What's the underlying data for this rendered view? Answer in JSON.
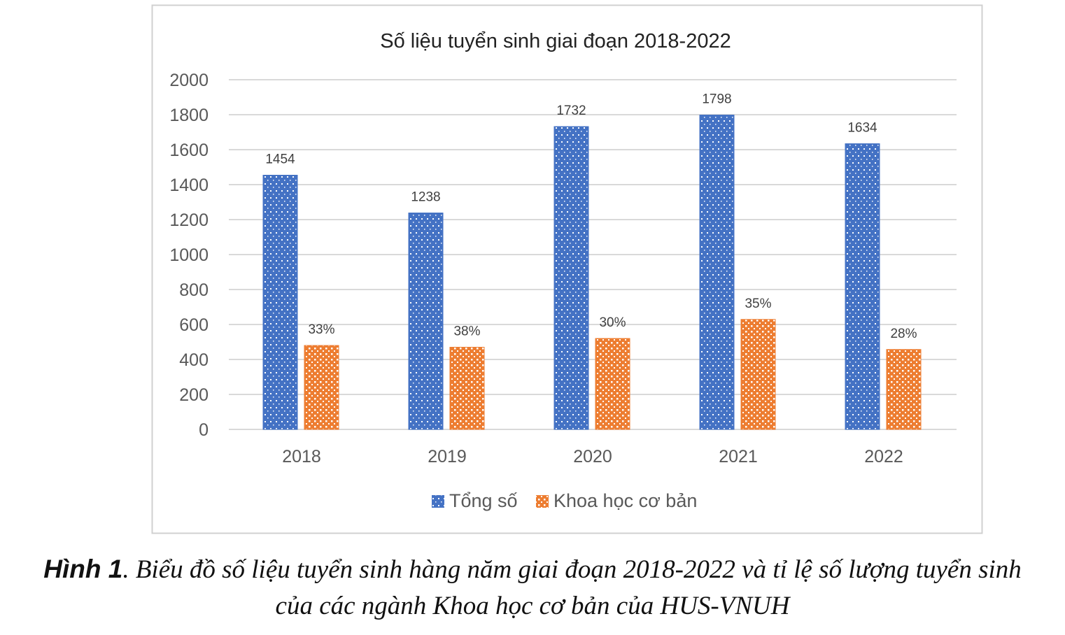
{
  "chart_data": {
    "type": "bar",
    "title": "Số liệu tuyển sinh giai đoạn 2018-2022",
    "categories": [
      "2018",
      "2019",
      "2020",
      "2021",
      "2022"
    ],
    "series": [
      {
        "name": "Tổng số",
        "values": [
          1454,
          1238,
          1732,
          1798,
          1634
        ],
        "labels": [
          "1454",
          "1238",
          "1732",
          "1798",
          "1634"
        ],
        "color": "#4472C4"
      },
      {
        "name": "Khoa học cơ bản",
        "values": [
          480,
          470,
          520,
          629,
          457
        ],
        "labels": [
          "33%",
          "38%",
          "30%",
          "35%",
          "28%"
        ],
        "color": "#ED7D31"
      }
    ],
    "ylim": [
      0,
      2000
    ],
    "yticks": [
      "0",
      "200",
      "400",
      "600",
      "800",
      "1000",
      "1200",
      "1400",
      "1600",
      "1800",
      "2000"
    ],
    "grid": true,
    "legend": "bottom",
    "xlabel": "",
    "ylabel": ""
  },
  "caption": {
    "figure_label": "Hình 1",
    "line1": ". Biểu đồ số liệu tuyển sinh hàng năm giai đoạn 2018-2022 và tỉ lệ số lượng tuyển sinh",
    "line2": "của các ngành Khoa học cơ bản của HUS-VNUH"
  }
}
